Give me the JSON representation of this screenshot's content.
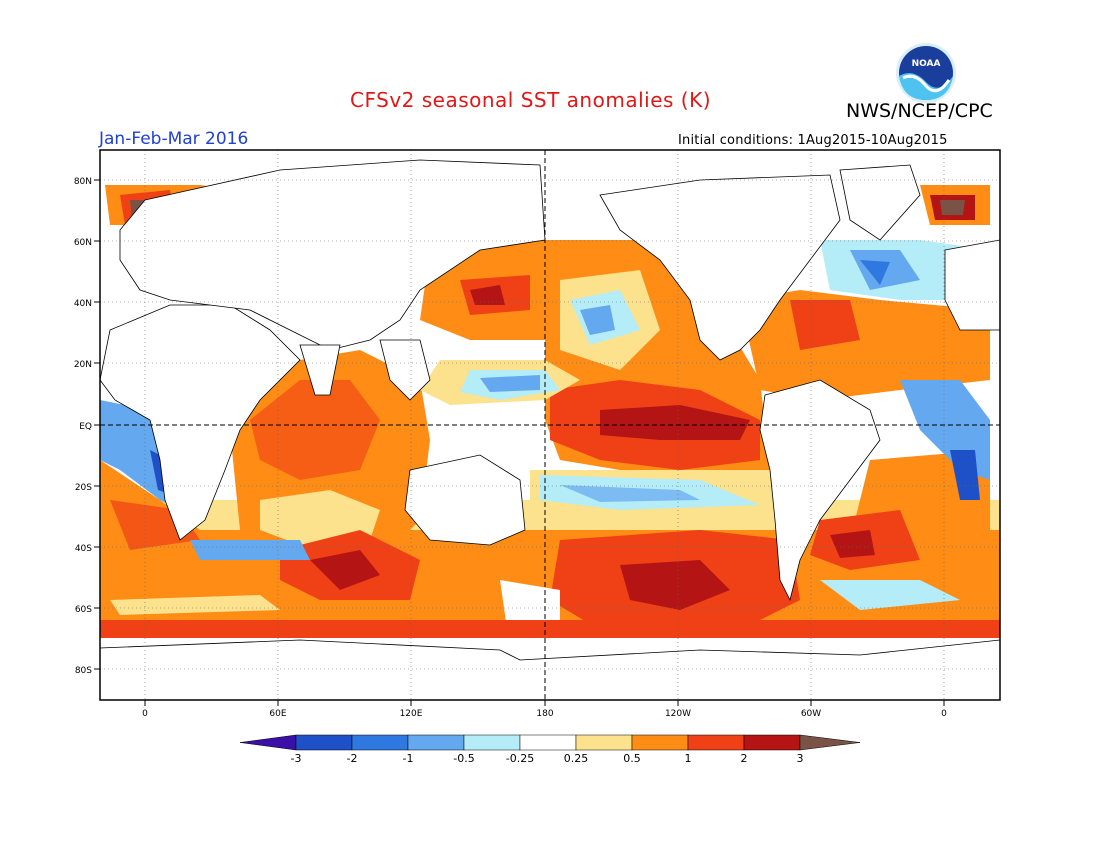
{
  "header": {
    "title": "CFSv2 seasonal SST anomalies (K)",
    "agency": "NWS/NCEP/CPC",
    "period": "Jan-Feb-Mar 2016",
    "initial_conditions": "Initial conditions: 1Aug2015-10Aug2015",
    "logo_text": "NOAA"
  },
  "map": {
    "projection": "cylindrical equidistant",
    "lon_range": [
      -20,
      380
    ],
    "lat_range": [
      -90,
      90
    ],
    "lat_labels": [
      "80N",
      "60N",
      "40N",
      "20N",
      "EQ",
      "20S",
      "40S",
      "60S",
      "80S"
    ],
    "lon_labels": [
      "0",
      "60E",
      "120E",
      "180",
      "120W",
      "60W",
      "0"
    ],
    "grid": "dotted",
    "reference_lines": [
      "equator",
      "dateline"
    ]
  },
  "colorbar": {
    "labels": [
      "-3",
      "-2",
      "-1",
      "-0.5",
      "-0.25",
      "0.25",
      "0.5",
      "1",
      "2",
      "3"
    ],
    "colors": [
      "#3a10a8",
      "#1e50c8",
      "#2e78e0",
      "#64a8f0",
      "#b4ecf8",
      "#ffffff",
      "#fce28c",
      "#ff8c14",
      "#f04016",
      "#b41414",
      "#7a5246"
    ]
  },
  "features": [
    "El Nino warm anomaly over central/eastern equatorial Pacific",
    "Warm anomalies over North Pacific and Indian Ocean",
    "Cool anomalies in western tropical Pacific and North Atlantic"
  ]
}
